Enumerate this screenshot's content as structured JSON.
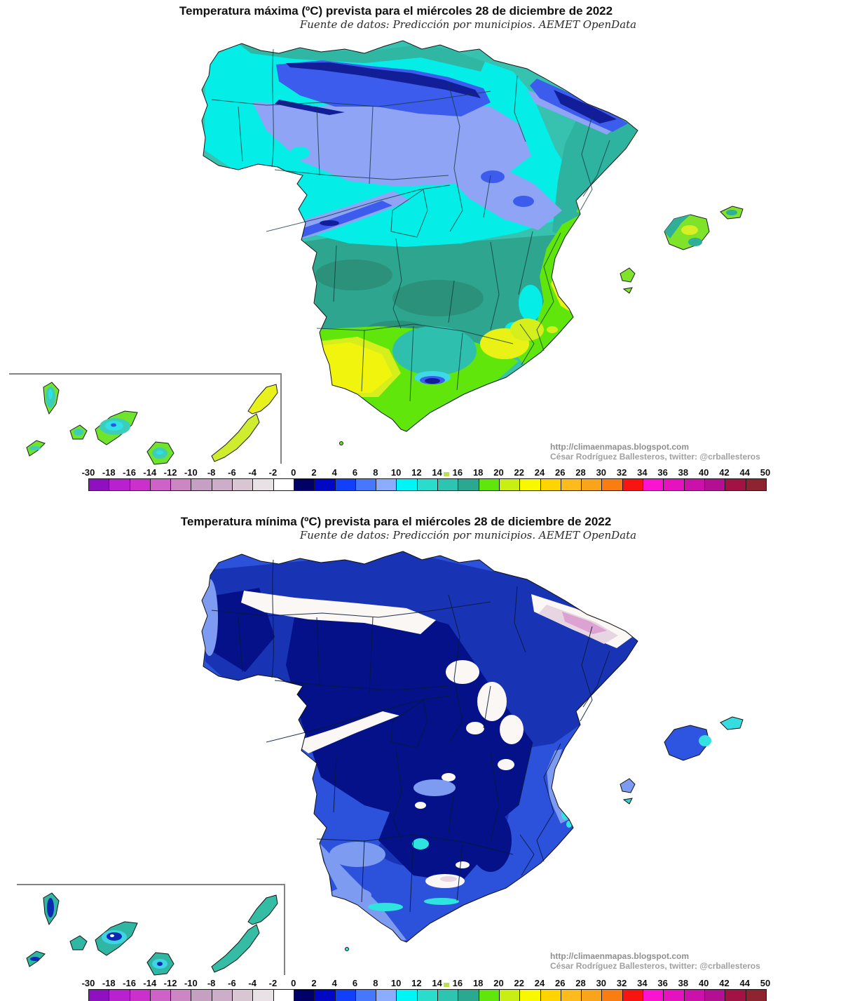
{
  "maps": [
    {
      "id": "tmax",
      "title": "Temperatura máxima (ºC) prevista para el miércoles 28 de diciembre de 2022",
      "subtitle": "Fuente de datos: Predicción por municipios. AEMET OpenData",
      "credit_line1": "http://climaenmapas.blogspot.com",
      "credit_line2": "César Rodríguez Ballesteros, twitter: @crballesteros"
    },
    {
      "id": "tmin",
      "title": "Temperatura mínima (ºC) prevista para el miércoles 28 de diciembre de 2022",
      "subtitle": "Fuente de datos: Predicción por municipios. AEMET OpenData",
      "credit_line1": "http://climaenmapas.blogspot.com",
      "credit_line2": "César Rodríguez Ballesteros, twitter: @crballesteros"
    }
  ],
  "legend": {
    "unit": "ºC",
    "tick_labels": [
      "-30",
      "-18",
      "-16",
      "-14",
      "-12",
      "-10",
      "-8",
      "-6",
      "-4",
      "-2",
      "0",
      "2",
      "4",
      "6",
      "8",
      "10",
      "12",
      "14",
      "16",
      "18",
      "20",
      "22",
      "24",
      "26",
      "28",
      "30",
      "32",
      "34",
      "36",
      "38",
      "40",
      "42",
      "44",
      "50"
    ],
    "segment_colors": [
      "#8F10C0",
      "#B820D0",
      "#CC30CC",
      "#CE62C8",
      "#CC86C4",
      "#C6A0C0",
      "#CCAEC8",
      "#D8C6D2",
      "#E8E2E6",
      "#FFFFFF",
      "#000066",
      "#0008C4",
      "#1240FA",
      "#4678FF",
      "#8CACFF",
      "#00F6F6",
      "#2ADCCC",
      "#2EC4B2",
      "#2AA890",
      "#60E60A",
      "#C8EE14",
      "#F8F800",
      "#FFD400",
      "#FDBB1E",
      "#FAA41C",
      "#FA7D14",
      "#F81410",
      "#FA14D2",
      "#E612C0",
      "#CC10AA",
      "#B40E92",
      "#A21244",
      "#8E2430"
    ],
    "marker_color": "#BCDF52"
  }
}
